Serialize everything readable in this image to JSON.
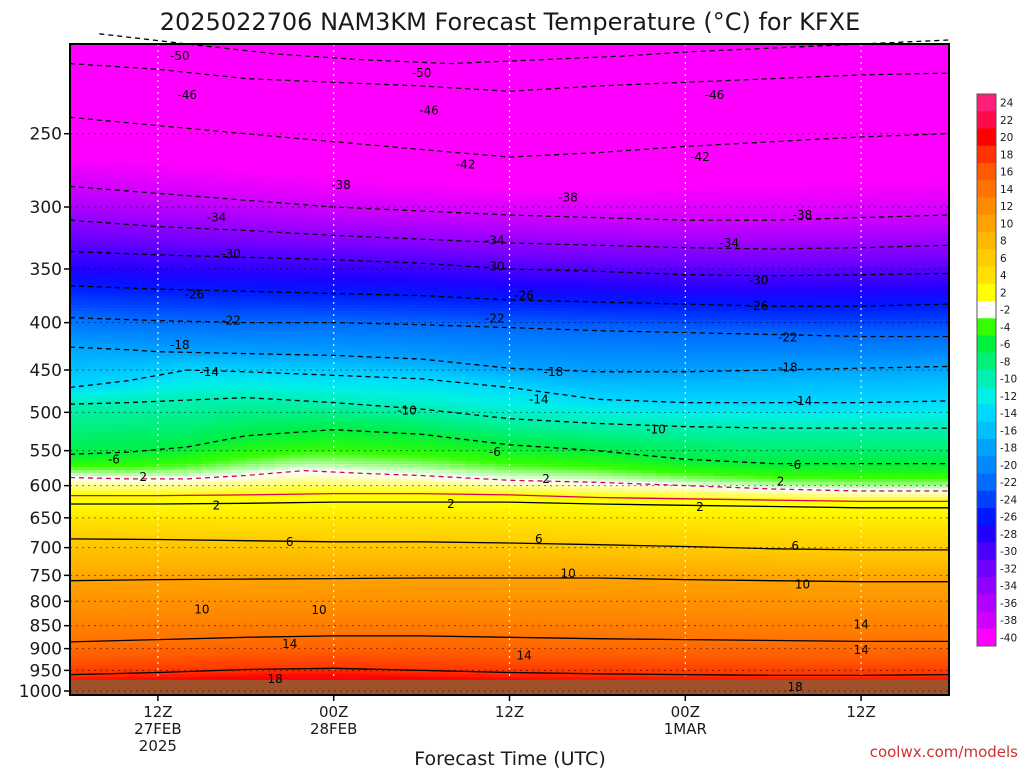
{
  "chart_data": {
    "type": "heatmap",
    "title": "2025022706 NAM3KM Forecast Temperature (°C) for KFXE",
    "xlabel": "Forecast Time (UTC)",
    "ylabel": "",
    "credit": "coolwx.com/models",
    "y_axis": {
      "scale": "log",
      "ylim": [
        1010,
        200
      ],
      "ticks": [
        250,
        300,
        350,
        400,
        450,
        500,
        550,
        600,
        650,
        700,
        750,
        800,
        850,
        900,
        950,
        1000
      ],
      "tick_labels": [
        "250",
        "300",
        "350",
        "400",
        "450",
        "500",
        "550",
        "600",
        "650",
        "700",
        "750",
        "800",
        "850",
        "900",
        "950",
        "1000"
      ]
    },
    "x_axis": {
      "xlim": [
        0,
        60
      ],
      "ticks": [
        6,
        18,
        30,
        42,
        54
      ],
      "tick_labels": [
        [
          "12Z",
          "27FEB",
          "2025"
        ],
        [
          "00Z",
          "28FEB"
        ],
        [
          "12Z"
        ],
        [
          "00Z",
          "1MAR"
        ],
        [
          "12Z"
        ]
      ]
    },
    "grid": true,
    "colorbar": {
      "labels": [
        "24",
        "22",
        "20",
        "18",
        "16",
        "14",
        "12",
        "10",
        "8",
        "6",
        "4",
        "2",
        "-2",
        "-4",
        "-6",
        "-8",
        "-10",
        "-12",
        "-14",
        "-16",
        "-18",
        "-20",
        "-22",
        "-24",
        "-26",
        "-28",
        "-30",
        "-32",
        "-34",
        "-36",
        "-38",
        "-40"
      ],
      "colors": [
        "#ff1f7a",
        "#ff0a4a",
        "#ff0000",
        "#ff3300",
        "#ff5a00",
        "#ff7300",
        "#ff8c00",
        "#ffa200",
        "#ffb800",
        "#ffcc00",
        "#ffe000",
        "#ffff00",
        "#ffffff",
        "#33ff00",
        "#00f040",
        "#00f07a",
        "#00f0b4",
        "#00f0e6",
        "#00d8ff",
        "#00c0ff",
        "#00a4ff",
        "#0088ff",
        "#006cff",
        "#0040ff",
        "#0018ff",
        "#2000ff",
        "#4a00ff",
        "#7000ff",
        "#9000ff",
        "#b000ff",
        "#d000ff",
        "#ff00ff"
      ]
    },
    "series": [
      {
        "contour": -50,
        "points": [
          [
            2,
            195
          ],
          [
            8,
            200
          ],
          [
            14,
            205
          ],
          [
            20,
            208
          ],
          [
            26,
            210
          ],
          [
            32,
            208
          ],
          [
            38,
            206
          ],
          [
            42,
            204
          ],
          [
            48,
            202
          ],
          [
            54,
            200
          ],
          [
            60,
            198
          ]
        ]
      },
      {
        "contour": -46,
        "points": [
          [
            0,
            210
          ],
          [
            6,
            213
          ],
          [
            12,
            218
          ],
          [
            18,
            220
          ],
          [
            24,
            222
          ],
          [
            30,
            225
          ],
          [
            36,
            222
          ],
          [
            42,
            220
          ],
          [
            48,
            218
          ],
          [
            54,
            216
          ],
          [
            60,
            215
          ]
        ]
      },
      {
        "contour": -42,
        "points": [
          [
            0,
            240
          ],
          [
            6,
            245
          ],
          [
            12,
            250
          ],
          [
            18,
            255
          ],
          [
            24,
            260
          ],
          [
            30,
            265
          ],
          [
            36,
            262
          ],
          [
            42,
            258
          ],
          [
            48,
            255
          ],
          [
            54,
            252
          ],
          [
            60,
            250
          ]
        ]
      },
      {
        "contour": -38,
        "points": [
          [
            0,
            285
          ],
          [
            6,
            290
          ],
          [
            12,
            295
          ],
          [
            18,
            300
          ],
          [
            24,
            303
          ],
          [
            30,
            306
          ],
          [
            36,
            308
          ],
          [
            42,
            310
          ],
          [
            48,
            310
          ],
          [
            54,
            308
          ],
          [
            60,
            306
          ]
        ]
      },
      {
        "contour": -34,
        "points": [
          [
            0,
            310
          ],
          [
            6,
            315
          ],
          [
            12,
            318
          ],
          [
            18,
            322
          ],
          [
            24,
            325
          ],
          [
            30,
            328
          ],
          [
            36,
            330
          ],
          [
            42,
            332
          ],
          [
            48,
            333
          ],
          [
            54,
            332
          ],
          [
            60,
            330
          ]
        ]
      },
      {
        "contour": -30,
        "points": [
          [
            0,
            335
          ],
          [
            6,
            338
          ],
          [
            12,
            340
          ],
          [
            18,
            342
          ],
          [
            24,
            345
          ],
          [
            30,
            350
          ],
          [
            36,
            352
          ],
          [
            42,
            355
          ],
          [
            48,
            356
          ],
          [
            54,
            355
          ],
          [
            60,
            354
          ]
        ]
      },
      {
        "contour": -26,
        "points": [
          [
            0,
            365
          ],
          [
            6,
            368
          ],
          [
            12,
            370
          ],
          [
            18,
            372
          ],
          [
            24,
            374
          ],
          [
            30,
            378
          ],
          [
            36,
            380
          ],
          [
            42,
            382
          ],
          [
            48,
            384
          ],
          [
            54,
            384
          ],
          [
            60,
            382
          ]
        ]
      },
      {
        "contour": -22,
        "points": [
          [
            0,
            395
          ],
          [
            6,
            398
          ],
          [
            12,
            400
          ],
          [
            18,
            400
          ],
          [
            24,
            402
          ],
          [
            30,
            405
          ],
          [
            36,
            408
          ],
          [
            42,
            410
          ],
          [
            48,
            412
          ],
          [
            54,
            414
          ],
          [
            60,
            414
          ]
        ]
      },
      {
        "contour": -18,
        "points": [
          [
            0,
            425
          ],
          [
            4,
            428
          ],
          [
            6,
            430
          ],
          [
            12,
            432
          ],
          [
            18,
            434
          ],
          [
            24,
            438
          ],
          [
            30,
            448
          ],
          [
            36,
            452
          ],
          [
            42,
            452
          ],
          [
            48,
            450
          ],
          [
            54,
            448
          ],
          [
            60,
            446
          ]
        ]
      },
      {
        "contour": -14,
        "points": [
          [
            0,
            470
          ],
          [
            4,
            462
          ],
          [
            8,
            450
          ],
          [
            12,
            452
          ],
          [
            18,
            456
          ],
          [
            24,
            460
          ],
          [
            30,
            470
          ],
          [
            36,
            484
          ],
          [
            42,
            488
          ],
          [
            48,
            488
          ],
          [
            54,
            488
          ],
          [
            60,
            486
          ]
        ]
      },
      {
        "contour": -10,
        "points": [
          [
            0,
            490
          ],
          [
            4,
            488
          ],
          [
            8,
            485
          ],
          [
            12,
            482
          ],
          [
            18,
            488
          ],
          [
            24,
            496
          ],
          [
            30,
            508
          ],
          [
            36,
            514
          ],
          [
            42,
            518
          ],
          [
            48,
            520
          ],
          [
            54,
            520
          ],
          [
            60,
            520
          ]
        ]
      },
      {
        "contour": -6,
        "points": [
          [
            0,
            555
          ],
          [
            4,
            552
          ],
          [
            8,
            545
          ],
          [
            12,
            530
          ],
          [
            18,
            522
          ],
          [
            24,
            528
          ],
          [
            30,
            542
          ],
          [
            36,
            550
          ],
          [
            42,
            562
          ],
          [
            48,
            568
          ],
          [
            54,
            568
          ],
          [
            60,
            568
          ]
        ]
      },
      {
        "contour": -2,
        "points": [
          [
            0,
            588
          ],
          [
            4,
            590
          ],
          [
            8,
            590
          ],
          [
            12,
            585
          ],
          [
            16,
            578
          ],
          [
            20,
            582
          ],
          [
            24,
            585
          ],
          [
            30,
            592
          ],
          [
            36,
            595
          ],
          [
            42,
            600
          ],
          [
            48,
            605
          ],
          [
            54,
            608
          ],
          [
            60,
            608
          ]
        ]
      },
      {
        "contour": 2,
        "points": [
          [
            0,
            615
          ],
          [
            6,
            615
          ],
          [
            12,
            614
          ],
          [
            18,
            612
          ],
          [
            24,
            612
          ],
          [
            30,
            614
          ],
          [
            36,
            618
          ],
          [
            42,
            620
          ],
          [
            48,
            622
          ],
          [
            54,
            624
          ],
          [
            60,
            624
          ]
        ]
      },
      {
        "contour": 2,
        "points": [
          [
            0,
            628
          ],
          [
            6,
            628
          ],
          [
            12,
            627
          ],
          [
            18,
            625
          ],
          [
            24,
            625
          ],
          [
            30,
            625
          ],
          [
            36,
            628
          ],
          [
            42,
            630
          ],
          [
            48,
            632
          ],
          [
            54,
            634
          ],
          [
            60,
            634
          ]
        ]
      },
      {
        "contour": 6,
        "points": [
          [
            0,
            685
          ],
          [
            6,
            686
          ],
          [
            12,
            688
          ],
          [
            18,
            690
          ],
          [
            24,
            690
          ],
          [
            30,
            692
          ],
          [
            36,
            695
          ],
          [
            42,
            698
          ],
          [
            48,
            702
          ],
          [
            54,
            704
          ],
          [
            60,
            704
          ]
        ]
      },
      {
        "contour": 10,
        "points": [
          [
            0,
            760
          ],
          [
            6,
            758
          ],
          [
            12,
            757
          ],
          [
            18,
            756
          ],
          [
            24,
            755
          ],
          [
            30,
            755
          ],
          [
            36,
            755
          ],
          [
            42,
            758
          ],
          [
            48,
            760
          ],
          [
            54,
            762
          ],
          [
            60,
            762
          ]
        ]
      },
      {
        "contour": 14,
        "points": [
          [
            0,
            885
          ],
          [
            6,
            880
          ],
          [
            12,
            875
          ],
          [
            18,
            872
          ],
          [
            24,
            872
          ],
          [
            30,
            875
          ],
          [
            36,
            878
          ],
          [
            42,
            880
          ],
          [
            48,
            882
          ],
          [
            54,
            884
          ],
          [
            60,
            884
          ]
        ]
      },
      {
        "contour": 18,
        "points": [
          [
            0,
            960
          ],
          [
            6,
            955
          ],
          [
            12,
            948
          ],
          [
            18,
            945
          ],
          [
            24,
            950
          ],
          [
            30,
            955
          ],
          [
            36,
            958
          ],
          [
            42,
            960
          ],
          [
            48,
            962
          ],
          [
            54,
            962
          ],
          [
            60,
            960
          ]
        ]
      }
    ],
    "contour_labels": [
      {
        "text": "-50",
        "x": 7.5,
        "p": 206
      },
      {
        "text": "-50",
        "x": 24,
        "p": 215
      },
      {
        "text": "-46",
        "x": 8,
        "p": 227
      },
      {
        "text": "-46",
        "x": 24.5,
        "p": 236
      },
      {
        "text": "-46",
        "x": 44,
        "p": 227
      },
      {
        "text": "-42",
        "x": 27,
        "p": 270
      },
      {
        "text": "-42",
        "x": 43,
        "p": 265
      },
      {
        "text": "-38",
        "x": 18.5,
        "p": 284
      },
      {
        "text": "-38",
        "x": 34,
        "p": 293
      },
      {
        "text": "-38",
        "x": 50,
        "p": 306
      },
      {
        "text": "-34",
        "x": 10,
        "p": 308
      },
      {
        "text": "-34",
        "x": 29,
        "p": 326
      },
      {
        "text": "-34",
        "x": 45,
        "p": 328
      },
      {
        "text": "-30",
        "x": 11,
        "p": 337
      },
      {
        "text": "-30",
        "x": 29,
        "p": 348
      },
      {
        "text": "-30",
        "x": 47,
        "p": 360
      },
      {
        "text": "-26",
        "x": 8.5,
        "p": 373
      },
      {
        "text": "-26",
        "x": 31,
        "p": 374
      },
      {
        "text": "-26",
        "x": 47,
        "p": 384
      },
      {
        "text": "-22",
        "x": 11,
        "p": 398
      },
      {
        "text": "-22",
        "x": 29,
        "p": 396
      },
      {
        "text": "-22",
        "x": 49,
        "p": 415
      },
      {
        "text": "-18",
        "x": 7.5,
        "p": 423
      },
      {
        "text": "-18",
        "x": 33,
        "p": 452
      },
      {
        "text": "-18",
        "x": 49,
        "p": 447
      },
      {
        "text": "-14",
        "x": 9.5,
        "p": 452
      },
      {
        "text": "-14",
        "x": 32,
        "p": 484
      },
      {
        "text": "-14",
        "x": 50,
        "p": 486
      },
      {
        "text": "-10",
        "x": 23,
        "p": 498
      },
      {
        "text": "-10",
        "x": 40,
        "p": 522
      },
      {
        "text": "-6",
        "x": 3,
        "p": 562
      },
      {
        "text": "-6",
        "x": 29,
        "p": 552
      },
      {
        "text": "-6",
        "x": 49.5,
        "p": 570
      },
      {
        "text": "2",
        "x": 5,
        "p": 587
      },
      {
        "text": "2",
        "x": 32.5,
        "p": 590
      },
      {
        "text": "2",
        "x": 48.5,
        "p": 594
      },
      {
        "text": "2",
        "x": 10,
        "p": 630
      },
      {
        "text": "2",
        "x": 26,
        "p": 628
      },
      {
        "text": "2",
        "x": 43,
        "p": 633
      },
      {
        "text": "6",
        "x": 15,
        "p": 690
      },
      {
        "text": "6",
        "x": 32,
        "p": 685
      },
      {
        "text": "6",
        "x": 49.5,
        "p": 697
      },
      {
        "text": "10",
        "x": 9,
        "p": 817
      },
      {
        "text": "10",
        "x": 17,
        "p": 818
      },
      {
        "text": "10",
        "x": 34,
        "p": 747
      },
      {
        "text": "10",
        "x": 50,
        "p": 767
      },
      {
        "text": "14",
        "x": 15,
        "p": 890
      },
      {
        "text": "14",
        "x": 31,
        "p": 915
      },
      {
        "text": "14",
        "x": 54,
        "p": 848
      },
      {
        "text": "14",
        "x": 54,
        "p": 903
      },
      {
        "text": "18",
        "x": 14,
        "p": 970
      },
      {
        "text": "18",
        "x": 49.5,
        "p": 990
      }
    ]
  }
}
